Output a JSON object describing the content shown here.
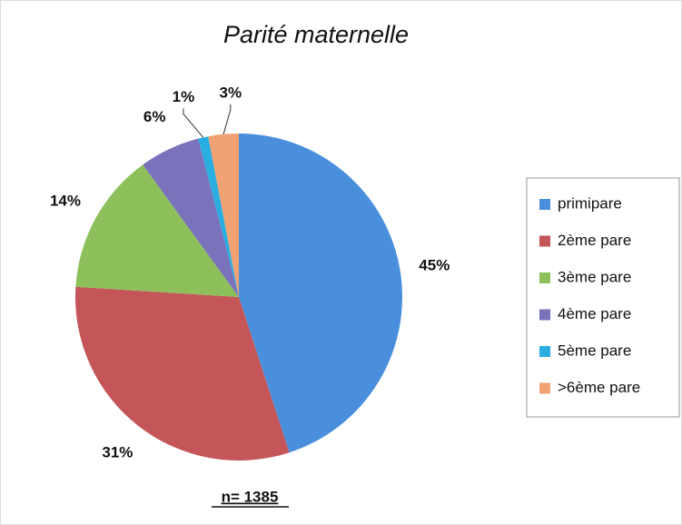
{
  "chart_data": {
    "type": "pie",
    "title": "Parité maternelle",
    "categories": [
      "primipare",
      "2ème pare",
      "3ème pare",
      "4ème pare",
      "5ème pare",
      ">6ème pare"
    ],
    "values": [
      45,
      31,
      14,
      6,
      1,
      3
    ],
    "value_labels": [
      "45%",
      "31%",
      "14%",
      "6%",
      "1%",
      "3%"
    ],
    "colors": [
      "#4a8fdc",
      "#c4565a",
      "#8dc05b",
      "#7a72bb",
      "#2aaee2",
      "#f1a273"
    ],
    "annotation": "n= 1385",
    "legend": "right"
  }
}
